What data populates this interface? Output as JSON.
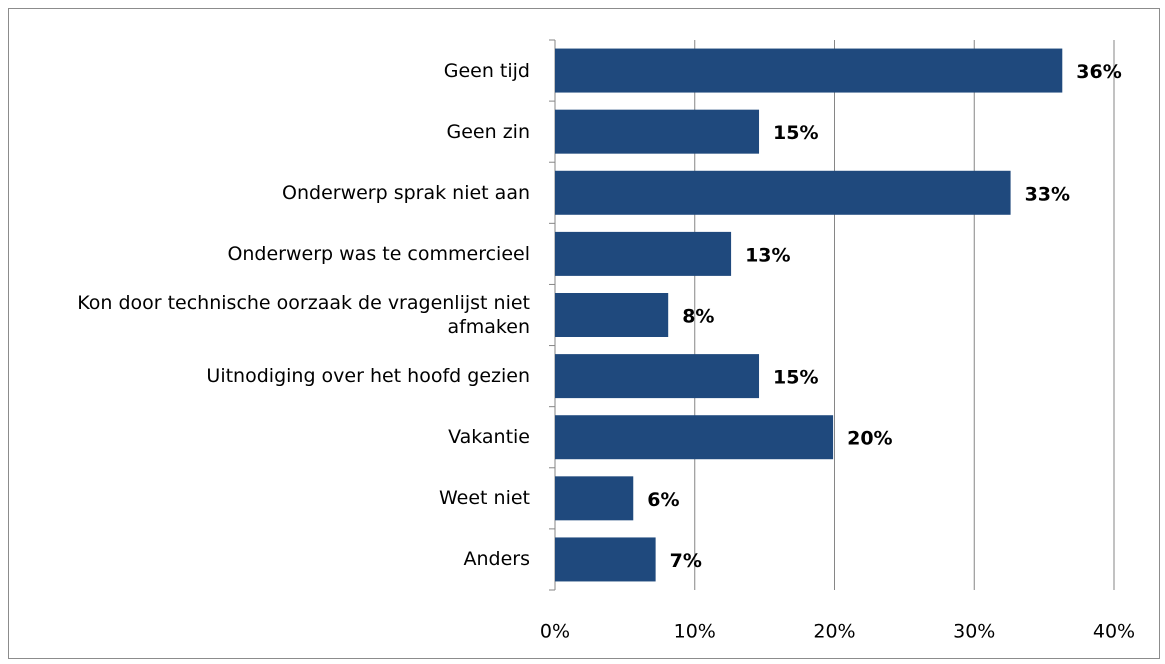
{
  "chart_data": {
    "type": "bar",
    "orientation": "horizontal",
    "categories": [
      "Geen tijd",
      "Geen zin",
      "Onderwerp sprak niet aan",
      "Onderwerp was te commercieel",
      "Kon door technische oorzaak de vragenlijst niet afmaken",
      "Uitnodiging over het hoofd gezien",
      "Vakantie",
      "Weet niet",
      "Anders"
    ],
    "values": [
      36.3,
      14.6,
      32.6,
      12.6,
      8.1,
      14.6,
      19.9,
      5.6,
      7.2
    ],
    "value_labels": [
      "36%",
      "15%",
      "33%",
      "13%",
      "8%",
      "15%",
      "20%",
      "6%",
      "7%"
    ],
    "color": "#1f497d",
    "xlim": [
      0,
      40
    ],
    "xticks": [
      {
        "value": 0,
        "label": "0%"
      },
      {
        "value": 10,
        "label": "10%"
      },
      {
        "value": 20,
        "label": "20%"
      },
      {
        "value": 30,
        "label": "30%"
      },
      {
        "value": 40,
        "label": "40%"
      }
    ],
    "grid": true
  }
}
